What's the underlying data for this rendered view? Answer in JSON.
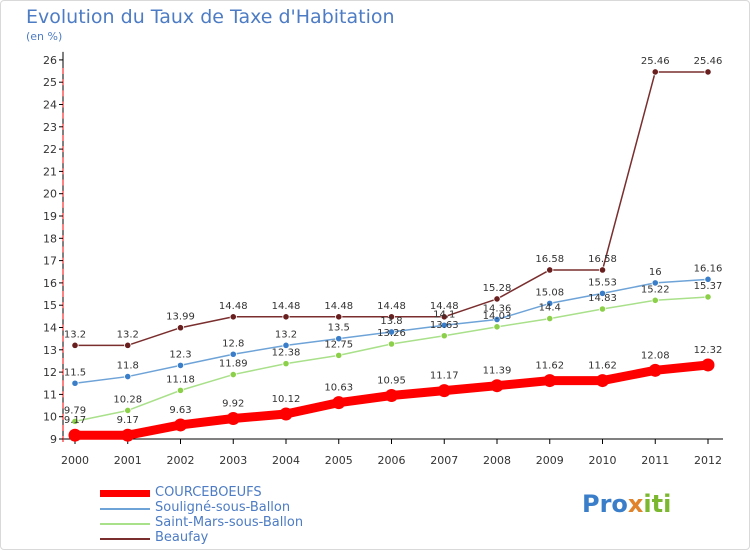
{
  "title": "Evolution du Taux de Taxe d'Habitation",
  "unit": "(en %)",
  "logo": {
    "p1": "Pro",
    "p2": "x",
    "p3": "iti"
  },
  "chart_data": {
    "type": "line",
    "title": "Evolution du Taux de Taxe d'Habitation",
    "ylabel": "(en %)",
    "xlabel": "",
    "ylim": [
      9,
      26
    ],
    "grid": false,
    "legend_position": "bottom-left",
    "x": [
      "2000",
      "2001",
      "2002",
      "2003",
      "2004",
      "2005",
      "2006",
      "2007",
      "2008",
      "2009",
      "2010",
      "2011",
      "2012"
    ],
    "yticks": [
      "9",
      "10",
      "11",
      "12",
      "13",
      "14",
      "15",
      "16",
      "17",
      "18",
      "19",
      "20",
      "21",
      "22",
      "23",
      "24",
      "25",
      "26"
    ],
    "series": [
      {
        "name": "COURCEBOEUFS",
        "color": "#ff0000",
        "values": [
          9.17,
          9.17,
          9.63,
          9.92,
          10.12,
          10.63,
          10.95,
          11.17,
          11.39,
          11.62,
          11.62,
          12.08,
          12.32
        ],
        "labels": [
          "9.17",
          "9.17",
          "9.63",
          "9.92",
          "10.12",
          "10.63",
          "10.95",
          "11.17",
          "11.39",
          "11.62",
          "11.62",
          "12.08",
          "12.32"
        ]
      },
      {
        "name": "Souligné-sous-Ballon",
        "color": "#6ea3d8",
        "marker": "#3a7ec9",
        "values": [
          11.5,
          11.8,
          12.3,
          12.8,
          13.2,
          13.5,
          13.8,
          14.1,
          14.36,
          15.08,
          15.53,
          16,
          16.16
        ],
        "labels": [
          "11.5",
          "11.8",
          "12.3",
          "12.8",
          "13.2",
          "13.5",
          "13.8",
          "14.1",
          "14.36",
          "15.08",
          "15.53",
          "16",
          "16.16"
        ]
      },
      {
        "name": "Saint-Mars-sous-Ballon",
        "color": "#a9e08a",
        "marker": "#8cd04a",
        "values": [
          9.79,
          10.28,
          11.18,
          11.89,
          12.38,
          12.75,
          13.26,
          13.63,
          14.03,
          14.4,
          14.83,
          15.22,
          15.37
        ],
        "labels": [
          "9.79",
          "10.28",
          "11.18",
          "11.89",
          "12.38",
          "12.75",
          "13.26",
          "13.63",
          "14.03",
          "14.4",
          "14.83",
          "15.22",
          "15.37"
        ]
      },
      {
        "name": "Beaufay",
        "color": "#7a2e2e",
        "marker": "#6a1f1f",
        "values": [
          13.2,
          13.2,
          13.99,
          14.48,
          14.48,
          14.48,
          14.48,
          14.48,
          15.28,
          16.58,
          16.58,
          25.46,
          25.46
        ],
        "labels": [
          "13.2",
          "13.2",
          "13.99",
          "14.48",
          "14.48",
          "14.48",
          "14.48",
          "14.48",
          "15.28",
          "16.58",
          "16.58",
          "25.46",
          "25.46"
        ]
      }
    ]
  }
}
